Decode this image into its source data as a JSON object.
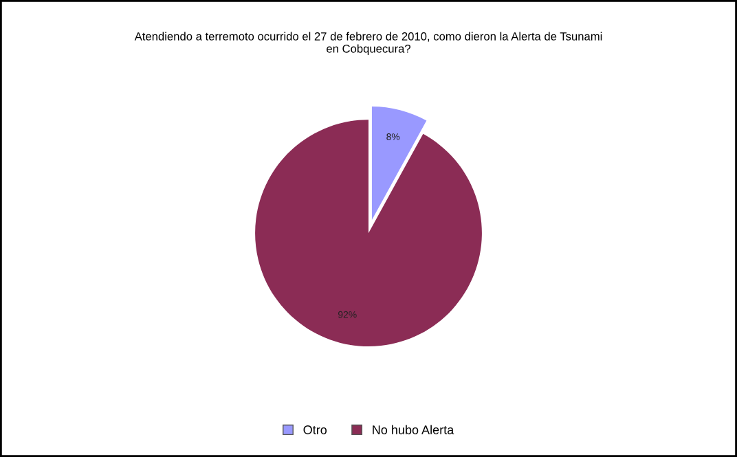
{
  "chart_data": {
    "type": "pie",
    "title": "Atendiendo a terremoto ocurrido el 27 de febrero de 2010, como dieron la Alerta de Tsunami\nen Cobquecura?",
    "categories": [
      "Otro",
      "No hubo Alerta"
    ],
    "values": [
      8,
      92
    ],
    "colors": [
      "#9999ff",
      "#8b2c55"
    ],
    "value_labels": [
      "8%",
      "92%"
    ],
    "legend": "bottom"
  }
}
